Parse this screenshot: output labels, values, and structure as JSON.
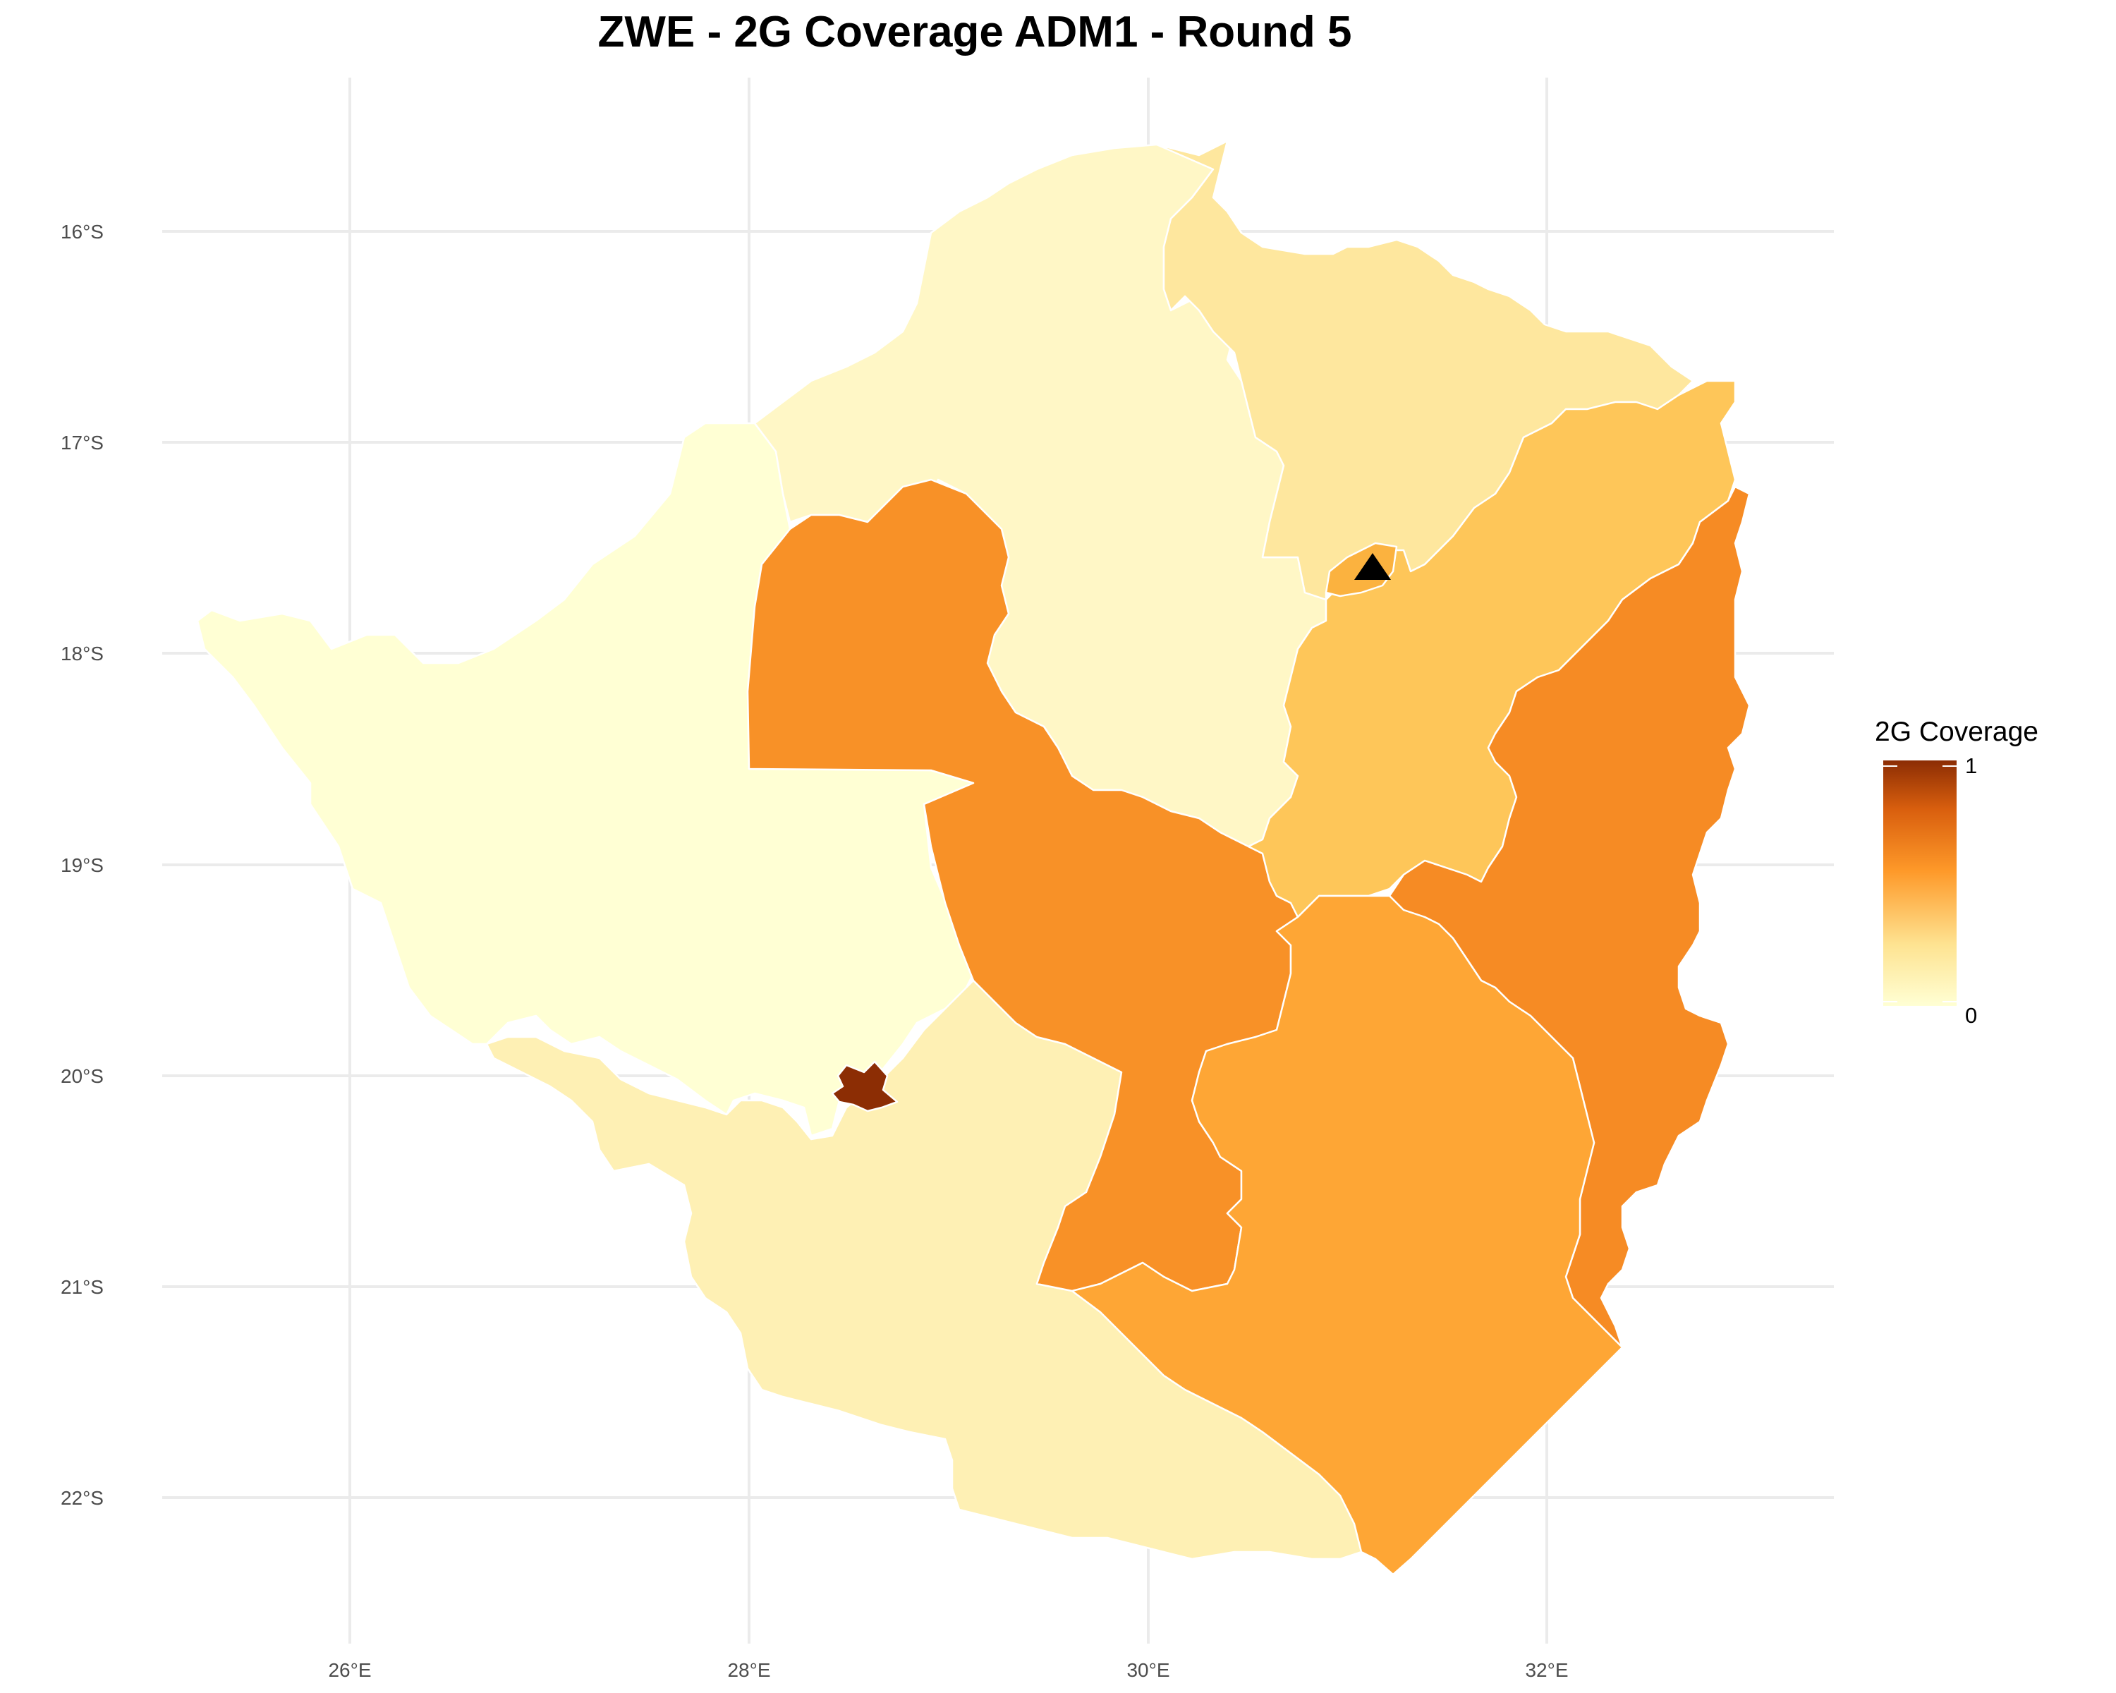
{
  "title": "ZWE - 2G Coverage ADM1 - Round 5",
  "axes": {
    "x_ticks": [
      "26°E",
      "28°E",
      "30°E",
      "32°E"
    ],
    "y_ticks": [
      "16°S",
      "17°S",
      "18°S",
      "19°S",
      "20°S",
      "21°S",
      "22°S"
    ],
    "grid": true
  },
  "legend": {
    "title": "2G Coverage",
    "max_label": "1",
    "min_label": "0",
    "color_low": "#ffffd4",
    "color_mid": "#fe9929",
    "color_high": "#8c2d04",
    "placement": "right"
  },
  "chart_data": {
    "type": "choropleth",
    "country": "ZWE",
    "admin_level": "ADM1",
    "metric": "2G Coverage",
    "value_range": [
      0,
      1
    ],
    "regions": [
      {
        "id": "matabeleland-north",
        "value": 0.0,
        "color": "#ffffd4"
      },
      {
        "id": "mashonaland-west",
        "value": 0.06,
        "color": "#fff7c6"
      },
      {
        "id": "mashonaland-central",
        "value": 0.16,
        "color": "#fee79e"
      },
      {
        "id": "mashonaland-east",
        "value": 0.38,
        "color": "#fec659"
      },
      {
        "id": "midlands",
        "value": 0.58,
        "color": "#f89127"
      },
      {
        "id": "manicaland",
        "value": 0.6,
        "color": "#f68b24"
      },
      {
        "id": "masvingo",
        "value": 0.52,
        "color": "#fea635"
      },
      {
        "id": "matabeleland-south",
        "value": 0.1,
        "color": "#fef0b4"
      },
      {
        "id": "harare",
        "value": 0.48,
        "color": "#fbb23f"
      },
      {
        "id": "bulawayo",
        "value": 1.0,
        "color": "#8c2d04"
      }
    ],
    "markers": [
      {
        "shape": "triangle",
        "color": "#000000",
        "lon": 31.05,
        "lat": -17.83
      }
    ]
  }
}
